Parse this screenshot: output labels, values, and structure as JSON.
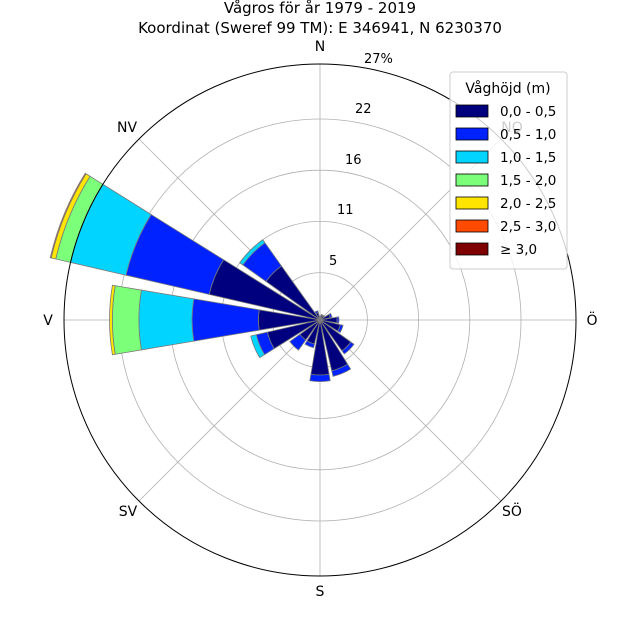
{
  "title": {
    "line1": "Vågros för år 1979 - 2019",
    "line2": "Koordinat (Sweref 99 TM): E 346941, N 6230370"
  },
  "directions": {
    "n": "N",
    "ne": "NO",
    "e": "Ö",
    "se": "SÖ",
    "s": "S",
    "sw": "SV",
    "w": "V",
    "nw": "NV"
  },
  "radial_ticks": [
    "5",
    "11",
    "16",
    "22",
    "27%"
  ],
  "legend": {
    "title": "Våghöjd (m)",
    "items": [
      {
        "label": "0,0 - 0,5",
        "color": "#00007f"
      },
      {
        "label": "0,5 - 1,0",
        "color": "#0022ff"
      },
      {
        "label": "1,0 - 1,5",
        "color": "#00d4ff"
      },
      {
        "label": "1,5 - 2,0",
        "color": "#7cff79"
      },
      {
        "label": "2,0 - 2,5",
        "color": "#ffe500"
      },
      {
        "label": "2,5 - 3,0",
        "color": "#ff4a00"
      },
      {
        "label": "≥ 3,0",
        "color": "#7f0000"
      }
    ]
  },
  "chart_data": {
    "type": "windrose",
    "title": "Vågros för år 1979 - 2019",
    "subtitle": "Koordinat (Sweref 99 TM): E 346941, N 6230370",
    "radial_unit": "%",
    "rmax": 27,
    "radial_ticks": [
      5,
      11,
      16,
      22,
      27
    ],
    "bin_labels": [
      "0,0 - 0,5",
      "0,5 - 1,0",
      "1,0 - 1,5",
      "1,5 - 2,0",
      "2,0 - 2,5",
      "2,5 - 3,0",
      "≥ 3,0"
    ],
    "sectors": [
      {
        "dir": 0,
        "stack": [
          0.3,
          0.1,
          0,
          0,
          0,
          0,
          0
        ]
      },
      {
        "dir": 22.5,
        "stack": [
          0.5,
          0.1,
          0,
          0,
          0,
          0,
          0
        ]
      },
      {
        "dir": 45,
        "stack": [
          0.5,
          0.1,
          0,
          0,
          0,
          0,
          0
        ]
      },
      {
        "dir": 67.5,
        "stack": [
          1.1,
          0.2,
          0,
          0,
          0,
          0,
          0
        ]
      },
      {
        "dir": 90,
        "stack": [
          1.8,
          0.2,
          0,
          0,
          0,
          0,
          0
        ]
      },
      {
        "dir": 112.5,
        "stack": [
          2.2,
          0.3,
          0,
          0,
          0,
          0,
          0
        ]
      },
      {
        "dir": 135,
        "stack": [
          4.0,
          0.4,
          0,
          0,
          0,
          0,
          0
        ]
      },
      {
        "dir": 157.5,
        "stack": [
          5.5,
          0.6,
          0,
          0,
          0,
          0,
          0
        ]
      },
      {
        "dir": 180,
        "stack": [
          5.8,
          0.7,
          0,
          0,
          0,
          0,
          0
        ]
      },
      {
        "dir": 202.5,
        "stack": [
          2.6,
          0.4,
          0,
          0,
          0,
          0,
          0
        ]
      },
      {
        "dir": 225,
        "stack": [
          2.6,
          1.3,
          0,
          0,
          0,
          0,
          0
        ]
      },
      {
        "dir": 247.5,
        "stack": [
          5.7,
          1.2,
          0.6,
          0,
          0,
          0,
          0
        ]
      },
      {
        "dir": 270,
        "stack": [
          6.5,
          7.0,
          5.6,
          2.8,
          0.3,
          0,
          0
        ]
      },
      {
        "dir": 292.5,
        "stack": [
          12.0,
          9.0,
          6.0,
          1.6,
          0.5,
          0.1,
          0
        ]
      },
      {
        "dir": 315,
        "stack": [
          7.0,
          3.0,
          0.4,
          0,
          0,
          0,
          0
        ]
      },
      {
        "dir": 337.5,
        "stack": [
          0.8,
          0.2,
          0,
          0,
          0,
          0,
          0
        ]
      }
    ]
  }
}
